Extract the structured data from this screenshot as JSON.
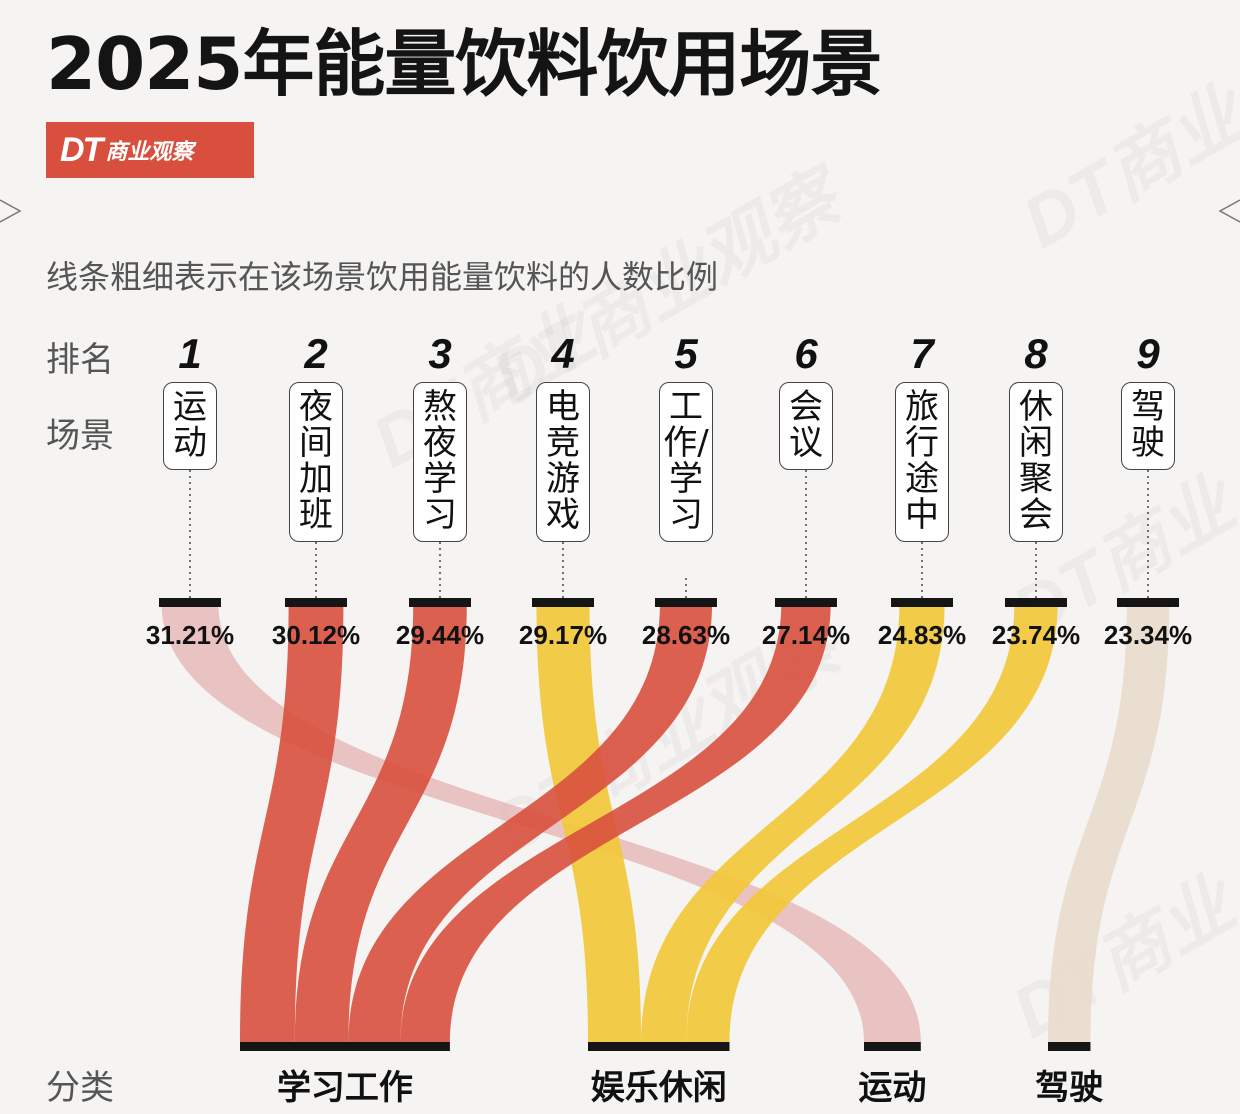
{
  "header": {
    "title": "2025年能量饮料饮用场景",
    "logo_mark": "DT",
    "logo_text": "商业观察",
    "subtitle": "线条粗细表示在该场景饮用能量饮料的人数比例"
  },
  "row_labels": {
    "rank": "排名",
    "scene": "场景",
    "category": "分类"
  },
  "colors": {
    "学习工作": "#d8503d",
    "娱乐休闲": "#f2c835",
    "运动": "#e6b9ba",
    "驾驶": "#e9dccd"
  },
  "chart_data": {
    "type": "sankey",
    "title": "2025年能量饮料饮用场景",
    "nodes": [
      {
        "rank": "1",
        "scene": "运动",
        "value": 31.21,
        "label": "31.21%",
        "category": "运动"
      },
      {
        "rank": "2",
        "scene": "夜间加班",
        "value": 30.12,
        "label": "30.12%",
        "category": "学习工作"
      },
      {
        "rank": "3",
        "scene": "熬夜学习",
        "value": 29.44,
        "label": "29.44%",
        "category": "学习工作"
      },
      {
        "rank": "4",
        "scene": "电竞游戏",
        "value": 29.17,
        "label": "29.17%",
        "category": "娱乐休闲"
      },
      {
        "rank": "5",
        "scene": "工作/学习",
        "value": 28.63,
        "label": "28.63%",
        "category": "学习工作"
      },
      {
        "rank": "6",
        "scene": "会议",
        "value": 27.14,
        "label": "27.14%",
        "category": "学习工作"
      },
      {
        "rank": "7",
        "scene": "旅行途中",
        "value": 24.83,
        "label": "24.83%",
        "category": "娱乐休闲"
      },
      {
        "rank": "8",
        "scene": "休闲聚会",
        "value": 23.74,
        "label": "23.74%",
        "category": "娱乐休闲"
      },
      {
        "rank": "9",
        "scene": "驾驶",
        "value": 23.34,
        "label": "23.34%",
        "category": "驾驶"
      }
    ],
    "categories": [
      "学习工作",
      "娱乐休闲",
      "运动",
      "驾驶"
    ],
    "unit": "%"
  }
}
